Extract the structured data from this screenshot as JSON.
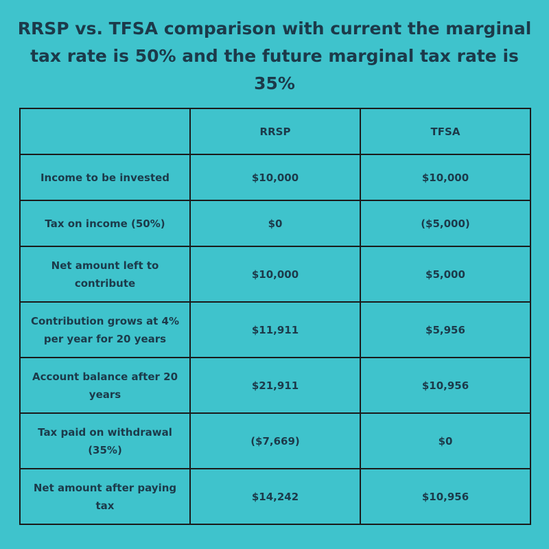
{
  "title": "RRSP vs. TFSA comparison with current the marginal tax rate is 50% and the future marginal tax rate is 35%",
  "table": {
    "headers": [
      "",
      "RRSP",
      "TFSA"
    ],
    "rows": [
      {
        "label": "Income to be invested",
        "rrsp": "$10,000",
        "tfsa": "$10,000"
      },
      {
        "label": "Tax on income (50%)",
        "rrsp": "$0",
        "tfsa": "($5,000)"
      },
      {
        "label": "Net amount left to contribute",
        "rrsp": "$10,000",
        "tfsa": "$5,000"
      },
      {
        "label": "Contribution grows at 4% per year for 20 years",
        "rrsp": "$11,911",
        "tfsa": "$5,956"
      },
      {
        "label": "Account balance after 20 years",
        "rrsp": "$21,911",
        "tfsa": "$10,956"
      },
      {
        "label": "Tax paid on withdrawal (35%)",
        "rrsp": "($7,669)",
        "tfsa": "$0"
      },
      {
        "label": "Net amount after paying tax",
        "rrsp": "$14,242",
        "tfsa": "$10,956"
      }
    ]
  },
  "colors": {
    "background": "#3fc3cc",
    "text": "#1c3a4a",
    "border": "#1a1a1a"
  }
}
